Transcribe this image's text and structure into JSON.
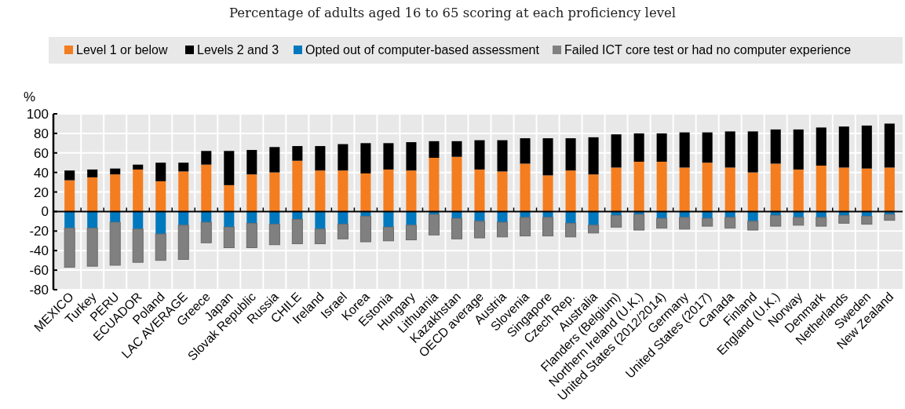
{
  "chart_data": {
    "type": "bar",
    "title": "Percentage of adults aged 16 to 65 scoring at each proficiency level",
    "ylabel": "%",
    "categories": [
      "MEXICO",
      "Turkey",
      "PERU",
      "ECUADOR",
      "Poland",
      "LAC AVERAGE",
      "Greece",
      "Japan",
      "Slovak Republic",
      "Russia",
      "CHILE",
      "Ireland",
      "Israel",
      "Korea",
      "Estonia",
      "Hungary",
      "Lithuania",
      "Kazakhstan",
      "OECD average",
      "Austria",
      "Slovenia",
      "Singapore",
      "Czech Rep.",
      "Australia",
      "Flanders (Belgium)",
      "Northern Ireland (U.K.)",
      "United States (2012/2014)",
      "Germany",
      "United States (2017)",
      "Canada",
      "Finland",
      "England (U.K.)",
      "Norway",
      "Denmark",
      "Netherlands",
      "Sweden",
      "New Zealand"
    ],
    "series": [
      {
        "name": "Level 1 or below",
        "color": "#f47d20",
        "values": [
          32,
          35,
          38,
          43,
          31,
          41,
          48,
          27,
          38,
          40,
          52,
          42,
          42,
          39,
          43,
          42,
          55,
          56,
          43,
          41,
          49,
          37,
          42,
          38,
          45,
          51,
          51,
          45,
          50,
          45,
          40,
          49,
          43,
          47,
          45,
          44,
          45
        ]
      },
      {
        "name": "Levels 2 and 3",
        "color": "#000000",
        "values": [
          10,
          8,
          6,
          5,
          19,
          9,
          14,
          35,
          25,
          26,
          15,
          25,
          27,
          31,
          27,
          29,
          17,
          16,
          30,
          32,
          26,
          38,
          33,
          38,
          34,
          29,
          29,
          36,
          31,
          37,
          42,
          35,
          41,
          39,
          42,
          44,
          45
        ]
      },
      {
        "name": "Opted out of computer-based assessment",
        "color": "#0078be",
        "values": [
          -17,
          -17,
          -11,
          -18,
          -23,
          -14,
          -11,
          -16,
          -12,
          -13,
          -8,
          -18,
          -13,
          -5,
          -16,
          -14,
          -3,
          -7,
          -10,
          -11,
          -6,
          -6,
          -12,
          -14,
          -4,
          -3,
          -7,
          -6,
          -7,
          -6,
          -10,
          -4,
          -6,
          -6,
          -4,
          -5,
          -3
        ]
      },
      {
        "name": "Failed ICT core test or had no computer experience",
        "color": "#808080",
        "values": [
          -40,
          -39,
          -44,
          -34,
          -27,
          -35,
          -21,
          -21,
          -25,
          -21,
          -25,
          -15,
          -15,
          -26,
          -14,
          -15,
          -21,
          -21,
          -17,
          -15,
          -19,
          -19,
          -14,
          -8,
          -12,
          -16,
          -10,
          -12,
          -8,
          -11,
          -9,
          -11,
          -8,
          -9,
          -8,
          -8,
          -6
        ]
      }
    ],
    "stacked": true,
    "ylim": [
      -80,
      100
    ],
    "yticks": [
      -80,
      -60,
      -40,
      -20,
      0,
      20,
      40,
      60,
      80,
      100
    ],
    "grid": true,
    "legend": "top"
  }
}
